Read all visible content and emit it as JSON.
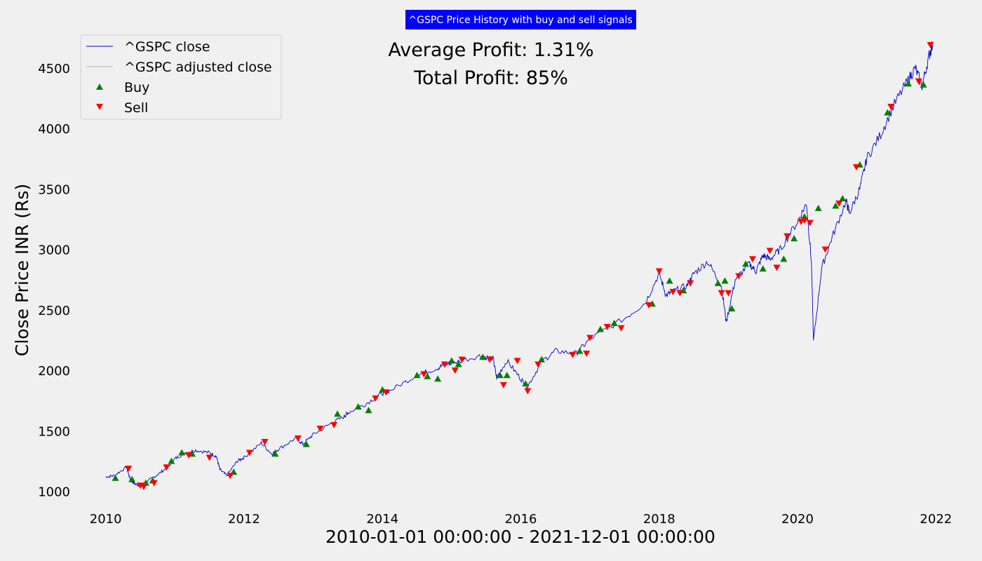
{
  "chart_data": {
    "type": "line",
    "title": "^GSPC Price History with buy and sell signals",
    "xlabel": "2010-01-01 00:00:00 - 2021-12-01 00:00:00",
    "ylabel": "Close Price INR (Rs)",
    "xlim": [
      2009.75,
      2022.25
    ],
    "ylim": [
      900,
      4800
    ],
    "x_ticks": [
      2010,
      2012,
      2014,
      2016,
      2018,
      2020,
      2022
    ],
    "y_ticks": [
      1000,
      1500,
      2000,
      2500,
      3000,
      3500,
      4000,
      4500
    ],
    "grid": false,
    "legend_position": "top-left",
    "annotations": [
      "Average Profit: 1.31%",
      "Total Profit: 85%"
    ],
    "colors": {
      "close": "#0000cc",
      "adjusted": "#c8c8c8",
      "buy": "#008000",
      "sell": "#ff0000",
      "title_bg": "#0000ff"
    },
    "series": [
      {
        "name": "^GSPC close",
        "x": [
          2010.0,
          2010.12,
          2010.3,
          2010.36,
          2010.43,
          2010.5,
          2010.6,
          2010.75,
          2010.9,
          2011.0,
          2011.15,
          2011.3,
          2011.5,
          2011.6,
          2011.65,
          2011.75,
          2011.9,
          2012.0,
          2012.25,
          2012.4,
          2012.5,
          2012.75,
          2012.85,
          2013.0,
          2013.25,
          2013.45,
          2013.5,
          2013.75,
          2014.0,
          2014.1,
          2014.5,
          2014.8,
          2014.9,
          2015.0,
          2015.4,
          2015.6,
          2015.65,
          2015.8,
          2016.0,
          2016.1,
          2016.3,
          2016.5,
          2016.8,
          2017.0,
          2017.5,
          2017.8,
          2018.0,
          2018.1,
          2018.2,
          2018.4,
          2018.5,
          2018.7,
          2018.9,
          2018.97,
          2019.1,
          2019.3,
          2019.4,
          2019.5,
          2019.6,
          2019.75,
          2020.0,
          2020.13,
          2020.2,
          2020.23,
          2020.35,
          2020.5,
          2020.7,
          2020.75,
          2020.9,
          2021.0,
          2021.2,
          2021.4,
          2021.6,
          2021.7,
          2021.8,
          2021.9,
          2021.95
        ],
        "y": [
          1120,
          1130,
          1200,
          1090,
          1060,
          1050,
          1080,
          1140,
          1200,
          1270,
          1320,
          1340,
          1320,
          1290,
          1180,
          1130,
          1250,
          1280,
          1400,
          1310,
          1350,
          1440,
          1390,
          1470,
          1560,
          1620,
          1650,
          1720,
          1810,
          1830,
          1960,
          2020,
          2050,
          2060,
          2120,
          2100,
          1940,
          2080,
          1930,
          1870,
          2070,
          2160,
          2140,
          2260,
          2430,
          2560,
          2800,
          2620,
          2650,
          2700,
          2800,
          2900,
          2700,
          2400,
          2750,
          2880,
          2820,
          2950,
          2920,
          3000,
          3230,
          3380,
          2900,
          2240,
          2850,
          3100,
          3400,
          3300,
          3500,
          3750,
          3950,
          4200,
          4400,
          4500,
          4350,
          4600,
          4690
        ]
      },
      {
        "name": "^GSPC adjusted close",
        "x": [],
        "y": []
      },
      {
        "name": "Buy",
        "x": [
          2010.14,
          2010.38,
          2010.58,
          2010.68,
          2010.95,
          2011.1,
          2011.25,
          2011.85,
          2012.45,
          2012.9,
          2013.35,
          2013.65,
          2013.8,
          2014.0,
          2014.5,
          2014.65,
          2014.8,
          2015.0,
          2015.1,
          2015.45,
          2015.7,
          2015.8,
          2016.07,
          2016.3,
          2016.85,
          2017.15,
          2017.35,
          2017.9,
          2018.15,
          2018.35,
          2018.85,
          2018.95,
          2019.05,
          2019.25,
          2019.5,
          2019.8,
          2019.95,
          2020.1,
          2020.3,
          2020.55,
          2020.65,
          2020.9,
          2021.3,
          2021.6,
          2021.82
        ],
        "y": [
          1110,
          1100,
          1070,
          1090,
          1250,
          1320,
          1310,
          1160,
          1310,
          1390,
          1640,
          1700,
          1670,
          1840,
          1960,
          1950,
          1930,
          2080,
          2050,
          2110,
          1960,
          1960,
          1890,
          2090,
          2160,
          2340,
          2390,
          2550,
          2740,
          2660,
          2720,
          2740,
          2510,
          2880,
          2840,
          2920,
          3090,
          3270,
          3340,
          3360,
          3420,
          3700,
          4130,
          4370,
          4360
        ]
      },
      {
        "name": "Sell",
        "x": [
          2010.33,
          2010.5,
          2010.55,
          2010.7,
          2010.88,
          2011.2,
          2011.5,
          2011.8,
          2012.08,
          2012.3,
          2012.78,
          2013.1,
          2013.3,
          2013.9,
          2014.05,
          2014.6,
          2014.9,
          2015.05,
          2015.15,
          2015.55,
          2015.75,
          2015.95,
          2016.1,
          2016.25,
          2016.75,
          2016.95,
          2017.0,
          2017.25,
          2017.45,
          2017.85,
          2018.0,
          2018.2,
          2018.3,
          2018.45,
          2018.9,
          2019.0,
          2019.15,
          2019.35,
          2019.6,
          2019.7,
          2019.85,
          2020.05,
          2020.1,
          2020.18,
          2020.4,
          2020.6,
          2020.85,
          2021.35,
          2021.75,
          2021.92
        ],
        "y": [
          1190,
          1050,
          1040,
          1070,
          1200,
          1300,
          1280,
          1130,
          1320,
          1410,
          1440,
          1520,
          1550,
          1770,
          1820,
          1970,
          2050,
          2000,
          2090,
          2090,
          1880,
          2080,
          1830,
          2050,
          2130,
          2140,
          2270,
          2360,
          2350,
          2540,
          2820,
          2650,
          2640,
          2720,
          2640,
          2640,
          2780,
          2920,
          2990,
          2850,
          3110,
          3230,
          3240,
          3220,
          3000,
          3380,
          3680,
          4180,
          4390,
          4690
        ]
      }
    ]
  }
}
